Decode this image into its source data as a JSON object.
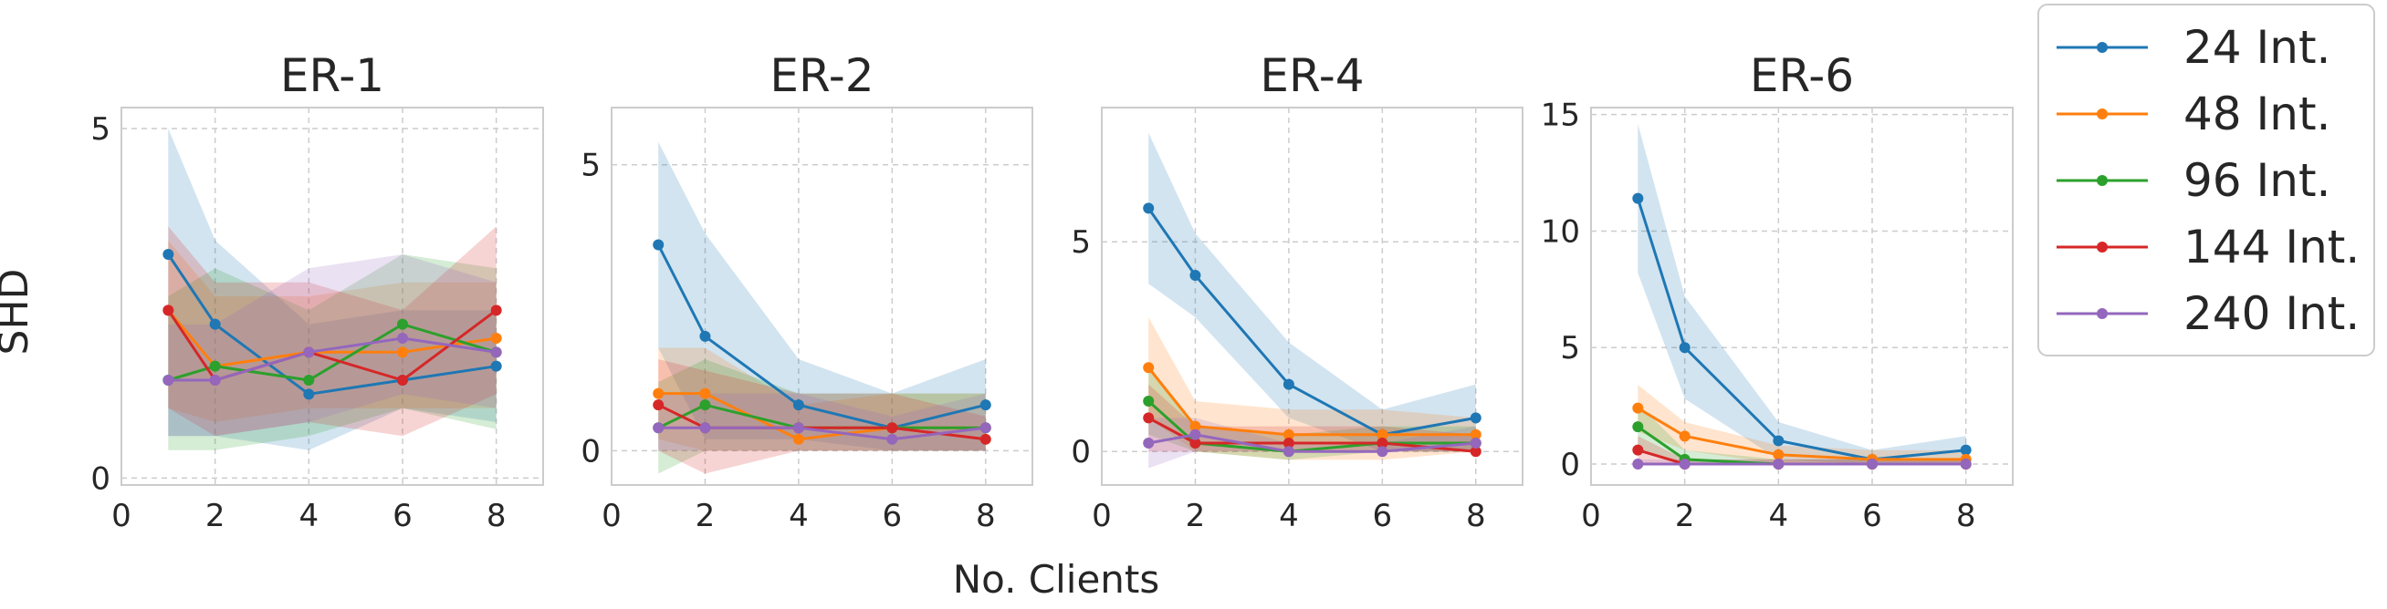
{
  "figure": {
    "ylabel": "SHD",
    "xlabel": "No. Clients"
  },
  "legend": {
    "placement": "right",
    "entries": [
      {
        "label": "24 Int.",
        "color": "#1f77b4"
      },
      {
        "label": "48 Int.",
        "color": "#ff7f0e"
      },
      {
        "label": "96 Int.",
        "color": "#2ca02c"
      },
      {
        "label": "144 Int.",
        "color": "#d62728"
      },
      {
        "label": "240 Int.",
        "color": "#9467bd"
      }
    ]
  },
  "chart_data": [
    {
      "type": "line",
      "title": "ER-1",
      "x": [
        1,
        2,
        4,
        6,
        8
      ],
      "xlim": [
        0,
        9
      ],
      "ylim": [
        -0.1,
        5.3
      ],
      "xticks": [
        0,
        2,
        4,
        6,
        8
      ],
      "yticks": [
        0,
        5
      ],
      "grid": true,
      "series": [
        {
          "name": "24 Int.",
          "color": "#1f77b4",
          "values": [
            3.2,
            2.2,
            1.2,
            1.4,
            1.6
          ],
          "lower": [
            0.6,
            0.6,
            0.4,
            1.0,
            0.8
          ],
          "upper": [
            5.0,
            3.4,
            2.2,
            2.4,
            2.4
          ]
        },
        {
          "name": "48 Int.",
          "color": "#ff7f0e",
          "values": [
            2.4,
            1.6,
            1.8,
            1.8,
            2.0
          ],
          "lower": [
            1.0,
            0.8,
            1.0,
            1.0,
            1.0
          ],
          "upper": [
            3.4,
            2.6,
            2.6,
            2.8,
            2.8
          ]
        },
        {
          "name": "96 Int.",
          "color": "#2ca02c",
          "values": [
            1.4,
            1.6,
            1.4,
            2.2,
            1.8
          ],
          "lower": [
            0.4,
            0.4,
            0.6,
            1.0,
            0.7
          ],
          "upper": [
            2.6,
            3.0,
            2.4,
            3.2,
            3.0
          ]
        },
        {
          "name": "144 Int.",
          "color": "#d62728",
          "values": [
            2.4,
            1.4,
            1.8,
            1.4,
            2.4
          ],
          "lower": [
            1.0,
            0.6,
            0.8,
            0.6,
            1.2
          ],
          "upper": [
            3.6,
            2.8,
            2.8,
            2.4,
            3.6
          ]
        },
        {
          "name": "240 Int.",
          "color": "#9467bd",
          "values": [
            1.4,
            1.4,
            1.8,
            2.0,
            1.8
          ],
          "lower": [
            0.6,
            0.6,
            0.8,
            1.2,
            1.0
          ],
          "upper": [
            2.2,
            2.2,
            3.0,
            3.2,
            2.8
          ]
        }
      ]
    },
    {
      "type": "line",
      "title": "ER-2",
      "x": [
        1,
        2,
        4,
        6,
        8
      ],
      "xlim": [
        0,
        9
      ],
      "ylim": [
        -0.6,
        6.0
      ],
      "xticks": [
        0,
        2,
        4,
        6,
        8
      ],
      "yticks": [
        0,
        5
      ],
      "grid": true,
      "series": [
        {
          "name": "24 Int.",
          "color": "#1f77b4",
          "values": [
            3.6,
            2.0,
            0.8,
            0.4,
            0.8
          ],
          "lower": [
            1.8,
            0.2,
            0.2,
            0.0,
            0.0
          ],
          "upper": [
            5.4,
            3.8,
            1.6,
            1.0,
            1.6
          ]
        },
        {
          "name": "48 Int.",
          "color": "#ff7f0e",
          "values": [
            1.0,
            1.0,
            0.2,
            0.4,
            0.4
          ],
          "lower": [
            0.2,
            0.0,
            0.0,
            0.0,
            0.0
          ],
          "upper": [
            1.8,
            1.8,
            0.8,
            1.0,
            1.0
          ]
        },
        {
          "name": "96 Int.",
          "color": "#2ca02c",
          "values": [
            0.4,
            0.8,
            0.4,
            0.4,
            0.4
          ],
          "lower": [
            -0.4,
            0.0,
            0.0,
            0.0,
            0.0
          ],
          "upper": [
            1.2,
            1.6,
            1.0,
            1.0,
            1.0
          ]
        },
        {
          "name": "144 Int.",
          "color": "#d62728",
          "values": [
            0.8,
            0.4,
            0.4,
            0.4,
            0.2
          ],
          "lower": [
            0.0,
            -0.4,
            0.0,
            0.0,
            0.0
          ],
          "upper": [
            1.6,
            1.4,
            1.0,
            1.0,
            0.6
          ]
        },
        {
          "name": "240 Int.",
          "color": "#9467bd",
          "values": [
            0.4,
            0.4,
            0.4,
            0.2,
            0.4
          ],
          "lower": [
            0.0,
            0.0,
            0.0,
            0.0,
            0.0
          ],
          "upper": [
            1.0,
            1.0,
            1.0,
            0.6,
            1.0
          ]
        }
      ]
    },
    {
      "type": "line",
      "title": "ER-4",
      "x": [
        1,
        2,
        4,
        6,
        8
      ],
      "xlim": [
        0,
        9
      ],
      "ylim": [
        -0.8,
        8.2
      ],
      "xticks": [
        0,
        2,
        4,
        6,
        8
      ],
      "yticks": [
        0,
        5
      ],
      "grid": true,
      "series": [
        {
          "name": "24 Int.",
          "color": "#1f77b4",
          "values": [
            5.8,
            4.2,
            1.6,
            0.4,
            0.8
          ],
          "lower": [
            4.0,
            3.2,
            0.8,
            0.0,
            0.0
          ],
          "upper": [
            7.6,
            5.2,
            2.6,
            1.0,
            1.6
          ]
        },
        {
          "name": "48 Int.",
          "color": "#ff7f0e",
          "values": [
            2.0,
            0.6,
            0.4,
            0.4,
            0.4
          ],
          "lower": [
            0.8,
            0.0,
            -0.2,
            -0.2,
            0.0
          ],
          "upper": [
            3.2,
            1.2,
            1.0,
            1.0,
            0.8
          ]
        },
        {
          "name": "96 Int.",
          "color": "#2ca02c",
          "values": [
            1.2,
            0.2,
            0.0,
            0.2,
            0.2
          ],
          "lower": [
            0.4,
            0.0,
            -0.2,
            0.0,
            0.0
          ],
          "upper": [
            2.0,
            0.6,
            0.4,
            0.6,
            0.6
          ]
        },
        {
          "name": "144 Int.",
          "color": "#d62728",
          "values": [
            0.8,
            0.2,
            0.2,
            0.2,
            0.0
          ],
          "lower": [
            0.0,
            0.0,
            0.0,
            0.0,
            0.0
          ],
          "upper": [
            1.6,
            0.6,
            0.6,
            0.6,
            0.4
          ]
        },
        {
          "name": "240 Int.",
          "color": "#9467bd",
          "values": [
            0.2,
            0.4,
            0.0,
            0.0,
            0.2
          ],
          "lower": [
            -0.4,
            0.0,
            0.0,
            0.0,
            0.0
          ],
          "upper": [
            0.8,
            0.8,
            0.2,
            0.2,
            0.6
          ]
        }
      ]
    },
    {
      "type": "line",
      "title": "ER-6",
      "x": [
        1,
        2,
        4,
        6,
        8
      ],
      "xlim": [
        0,
        9
      ],
      "ylim": [
        -0.9,
        15.3
      ],
      "xticks": [
        0,
        2,
        4,
        6,
        8
      ],
      "yticks": [
        0,
        5,
        10,
        15
      ],
      "grid": true,
      "series": [
        {
          "name": "24 Int.",
          "color": "#1f77b4",
          "values": [
            11.4,
            5.0,
            1.0,
            0.2,
            0.6
          ],
          "lower": [
            8.2,
            2.8,
            0.2,
            0.0,
            0.0
          ],
          "upper": [
            14.6,
            7.2,
            1.8,
            0.6,
            1.2
          ]
        },
        {
          "name": "48 Int.",
          "color": "#ff7f0e",
          "values": [
            2.4,
            1.2,
            0.4,
            0.2,
            0.2
          ],
          "lower": [
            1.4,
            0.6,
            0.0,
            0.0,
            0.0
          ],
          "upper": [
            3.4,
            1.8,
            0.8,
            0.6,
            0.6
          ]
        },
        {
          "name": "96 Int.",
          "color": "#2ca02c",
          "values": [
            1.6,
            0.2,
            0.0,
            0.0,
            0.0
          ],
          "lower": [
            0.6,
            0.0,
            0.0,
            0.0,
            0.0
          ],
          "upper": [
            2.6,
            0.6,
            0.2,
            0.2,
            0.2
          ]
        },
        {
          "name": "144 Int.",
          "color": "#d62728",
          "values": [
            0.6,
            0.0,
            0.0,
            0.0,
            0.0
          ],
          "lower": [
            0.0,
            0.0,
            0.0,
            0.0,
            0.0
          ],
          "upper": [
            1.2,
            0.2,
            0.2,
            0.2,
            0.2
          ]
        },
        {
          "name": "240 Int.",
          "color": "#9467bd",
          "values": [
            0.0,
            0.0,
            0.0,
            0.0,
            0.0
          ],
          "lower": [
            0.0,
            0.0,
            0.0,
            0.0,
            0.0
          ],
          "upper": [
            0.2,
            0.2,
            0.2,
            0.2,
            0.2
          ]
        }
      ]
    }
  ]
}
